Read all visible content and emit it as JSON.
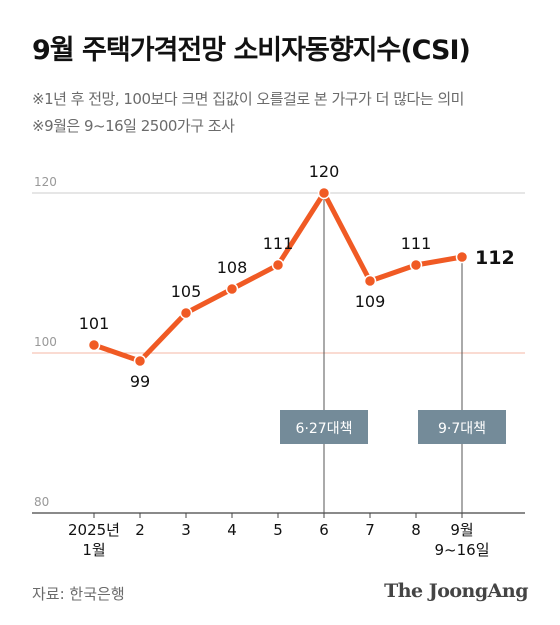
{
  "title": "9월 주택가격전망 소비자동향지수(CSI)",
  "notes": [
    "※1년 후 전망, 100보다 크면 집값이 오를걸로 본 가구가 더 많다는 의미",
    "※9월은 9~16일 2500가구 조사"
  ],
  "source": "자료: 한국은행",
  "logo": "The JoongAng",
  "colors": {
    "line": "#f05a24",
    "baseline": "#f4b7a4",
    "grid": "#cccccc",
    "annotation_box": "#748b99"
  },
  "chart_data": {
    "type": "line",
    "title": "9월 주택가격전망 소비자동향지수(CSI)",
    "xlabel": "",
    "ylabel": "",
    "categories": [
      [
        "2025년",
        "1월"
      ],
      [
        "2"
      ],
      [
        "3"
      ],
      [
        "4"
      ],
      [
        "5"
      ],
      [
        "6"
      ],
      [
        "7"
      ],
      [
        "8"
      ],
      [
        "9월",
        "9~16일"
      ]
    ],
    "series": [
      {
        "values": [
          101,
          99,
          105,
          108,
          111,
          120,
          109,
          111,
          112
        ]
      }
    ],
    "ylim": [
      80,
      120
    ],
    "yticks": [
      80,
      100,
      120
    ],
    "baseline": 100,
    "grid": true,
    "annotations": [
      {
        "category_index": 5,
        "label": "6·27대책"
      },
      {
        "category_index": 8,
        "label": "9·7대책"
      }
    ]
  }
}
